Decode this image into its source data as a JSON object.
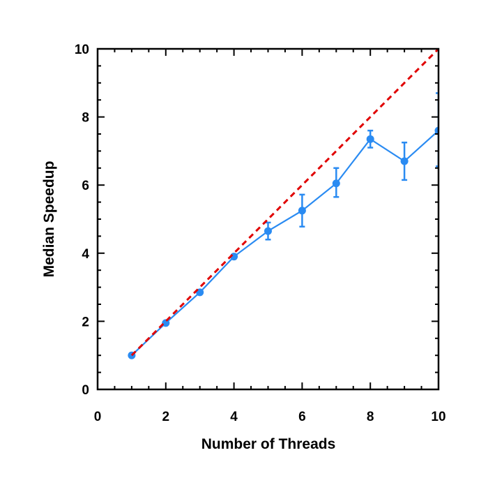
{
  "chart_data": {
    "type": "line",
    "xlabel": "Number of Threads",
    "ylabel": "Median Speedup",
    "xlim": [
      0,
      10
    ],
    "ylim": [
      0,
      10
    ],
    "xticks": [
      0,
      2,
      4,
      6,
      8,
      10
    ],
    "yticks": [
      0,
      2,
      4,
      6,
      8,
      10
    ],
    "grid": false,
    "series": [
      {
        "color": "#2a8bf2",
        "marker": "circle",
        "x": [
          1,
          2,
          3,
          4,
          5,
          6,
          7,
          8,
          9,
          10
        ],
        "y": [
          1.0,
          1.95,
          2.85,
          3.9,
          4.65,
          5.25,
          6.05,
          7.35,
          6.7,
          7.6
        ],
        "err_low": [
          0.0,
          0.05,
          0.05,
          0.05,
          0.25,
          0.47,
          0.4,
          0.25,
          0.55,
          1.05
        ],
        "err_high": [
          0.0,
          0.05,
          0.05,
          0.05,
          0.25,
          0.47,
          0.45,
          0.25,
          0.55,
          1.1
        ]
      },
      {
        "color": "#e00000",
        "line_style": "dashed",
        "x": [
          1,
          10
        ],
        "y": [
          1,
          10
        ]
      }
    ]
  }
}
